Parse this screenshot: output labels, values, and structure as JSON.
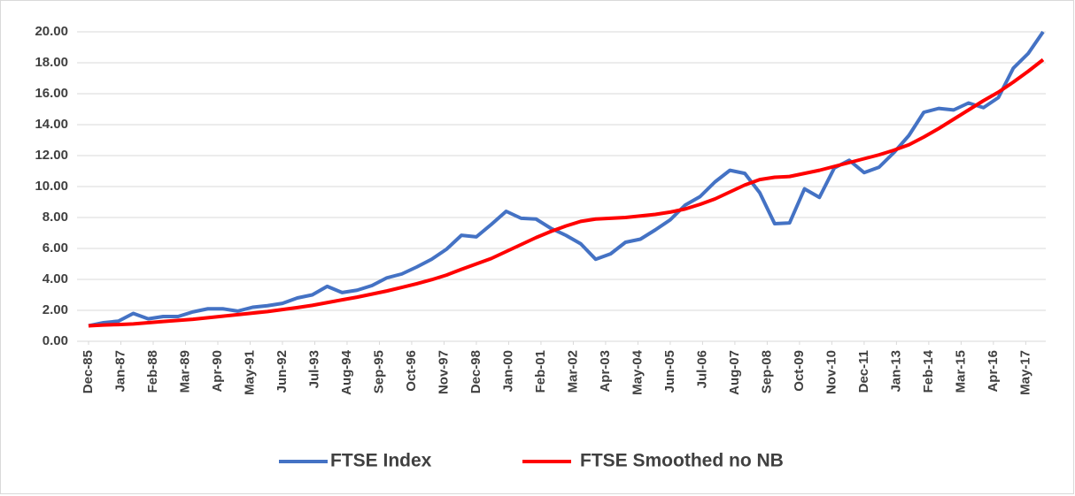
{
  "chart_data": {
    "type": "line",
    "x": [
      "1985-12",
      "1986-06",
      "1986-12",
      "1987-06",
      "1987-12",
      "1988-06",
      "1988-12",
      "1989-06",
      "1989-12",
      "1990-06",
      "1990-12",
      "1991-06",
      "1991-12",
      "1992-06",
      "1992-12",
      "1993-06",
      "1993-12",
      "1994-06",
      "1994-12",
      "1995-06",
      "1995-12",
      "1996-06",
      "1996-12",
      "1997-06",
      "1997-12",
      "1998-06",
      "1998-12",
      "1999-06",
      "1999-12",
      "2000-06",
      "2000-12",
      "2001-06",
      "2001-12",
      "2002-06",
      "2002-12",
      "2003-06",
      "2003-12",
      "2004-06",
      "2004-12",
      "2005-06",
      "2005-12",
      "2006-06",
      "2006-12",
      "2007-06",
      "2007-12",
      "2008-06",
      "2008-12",
      "2009-06",
      "2009-12",
      "2010-06",
      "2010-12",
      "2011-06",
      "2011-12",
      "2012-06",
      "2012-12",
      "2013-06",
      "2013-12",
      "2014-06",
      "2014-12",
      "2015-06",
      "2015-12",
      "2016-06",
      "2016-12",
      "2017-06",
      "2017-12"
    ],
    "series": [
      {
        "name": "FTSE Index",
        "color": "#4472c4",
        "values": [
          1.0,
          1.2,
          1.3,
          1.8,
          1.45,
          1.6,
          1.6,
          1.9,
          2.1,
          2.1,
          1.95,
          2.2,
          2.3,
          2.45,
          2.8,
          3.0,
          3.55,
          3.15,
          3.3,
          3.6,
          4.1,
          4.35,
          4.8,
          5.3,
          5.95,
          6.85,
          6.75,
          7.55,
          8.4,
          7.95,
          7.9,
          7.3,
          6.85,
          6.3,
          5.3,
          5.65,
          6.4,
          6.6,
          7.2,
          7.85,
          8.8,
          9.35,
          10.3,
          11.05,
          10.85,
          9.6,
          7.6,
          7.65,
          9.85,
          9.3,
          11.2,
          11.7,
          10.9,
          11.25,
          12.2,
          13.3,
          14.8,
          15.05,
          14.95,
          15.4,
          15.1,
          15.75,
          17.65,
          18.6,
          20.0
        ]
      },
      {
        "name": "FTSE Smoothed no NB",
        "color": "#ff0000",
        "values": [
          1.0,
          1.05,
          1.08,
          1.12,
          1.2,
          1.28,
          1.35,
          1.42,
          1.52,
          1.62,
          1.72,
          1.82,
          1.92,
          2.05,
          2.18,
          2.32,
          2.5,
          2.68,
          2.85,
          3.05,
          3.25,
          3.48,
          3.72,
          3.98,
          4.28,
          4.65,
          5.0,
          5.35,
          5.8,
          6.25,
          6.7,
          7.1,
          7.45,
          7.75,
          7.9,
          7.95,
          8.0,
          8.1,
          8.2,
          8.35,
          8.55,
          8.85,
          9.2,
          9.65,
          10.1,
          10.45,
          10.6,
          10.65,
          10.85,
          11.05,
          11.3,
          11.55,
          11.8,
          12.05,
          12.35,
          12.7,
          13.2,
          13.75,
          14.35,
          14.95,
          15.55,
          16.1,
          16.75,
          17.45,
          18.2
        ]
      }
    ],
    "xlim": [
      "1985-12",
      "2017-12"
    ],
    "xticks": [
      {
        "value": "1985-12",
        "label": "Dec-85"
      },
      {
        "value": "1987-01",
        "label": "Jan-87"
      },
      {
        "value": "1988-02",
        "label": "Feb-88"
      },
      {
        "value": "1989-03",
        "label": "Mar-89"
      },
      {
        "value": "1990-04",
        "label": "Apr-90"
      },
      {
        "value": "1991-05",
        "label": "May-91"
      },
      {
        "value": "1992-06",
        "label": "Jun-92"
      },
      {
        "value": "1993-07",
        "label": "Jul-93"
      },
      {
        "value": "1994-08",
        "label": "Aug-94"
      },
      {
        "value": "1995-09",
        "label": "Sep-95"
      },
      {
        "value": "1996-10",
        "label": "Oct-96"
      },
      {
        "value": "1997-11",
        "label": "Nov-97"
      },
      {
        "value": "1998-12",
        "label": "Dec-98"
      },
      {
        "value": "2000-01",
        "label": "Jan-00"
      },
      {
        "value": "2001-02",
        "label": "Feb-01"
      },
      {
        "value": "2002-03",
        "label": "Mar-02"
      },
      {
        "value": "2003-04",
        "label": "Apr-03"
      },
      {
        "value": "2004-05",
        "label": "May-04"
      },
      {
        "value": "2005-06",
        "label": "Jun-05"
      },
      {
        "value": "2006-07",
        "label": "Jul-06"
      },
      {
        "value": "2007-08",
        "label": "Aug-07"
      },
      {
        "value": "2008-09",
        "label": "Sep-08"
      },
      {
        "value": "2009-10",
        "label": "Oct-09"
      },
      {
        "value": "2010-11",
        "label": "Nov-10"
      },
      {
        "value": "2011-12",
        "label": "Dec-11"
      },
      {
        "value": "2013-01",
        "label": "Jan-13"
      },
      {
        "value": "2014-02",
        "label": "Feb-14"
      },
      {
        "value": "2015-03",
        "label": "Mar-15"
      },
      {
        "value": "2016-04",
        "label": "Apr-16"
      },
      {
        "value": "2017-05",
        "label": "May-17"
      }
    ],
    "ylim": [
      0,
      20
    ],
    "yticks": [
      {
        "value": 0,
        "label": "0.00"
      },
      {
        "value": 2,
        "label": "2.00"
      },
      {
        "value": 4,
        "label": "4.00"
      },
      {
        "value": 6,
        "label": "6.00"
      },
      {
        "value": 8,
        "label": "8.00"
      },
      {
        "value": 10,
        "label": "10.00"
      },
      {
        "value": 12,
        "label": "12.00"
      },
      {
        "value": 14,
        "label": "14.00"
      },
      {
        "value": 16,
        "label": "16.00"
      },
      {
        "value": 18,
        "label": "18.00"
      },
      {
        "value": 20,
        "label": "20.00"
      }
    ],
    "grid": true,
    "legend": "bottom"
  }
}
